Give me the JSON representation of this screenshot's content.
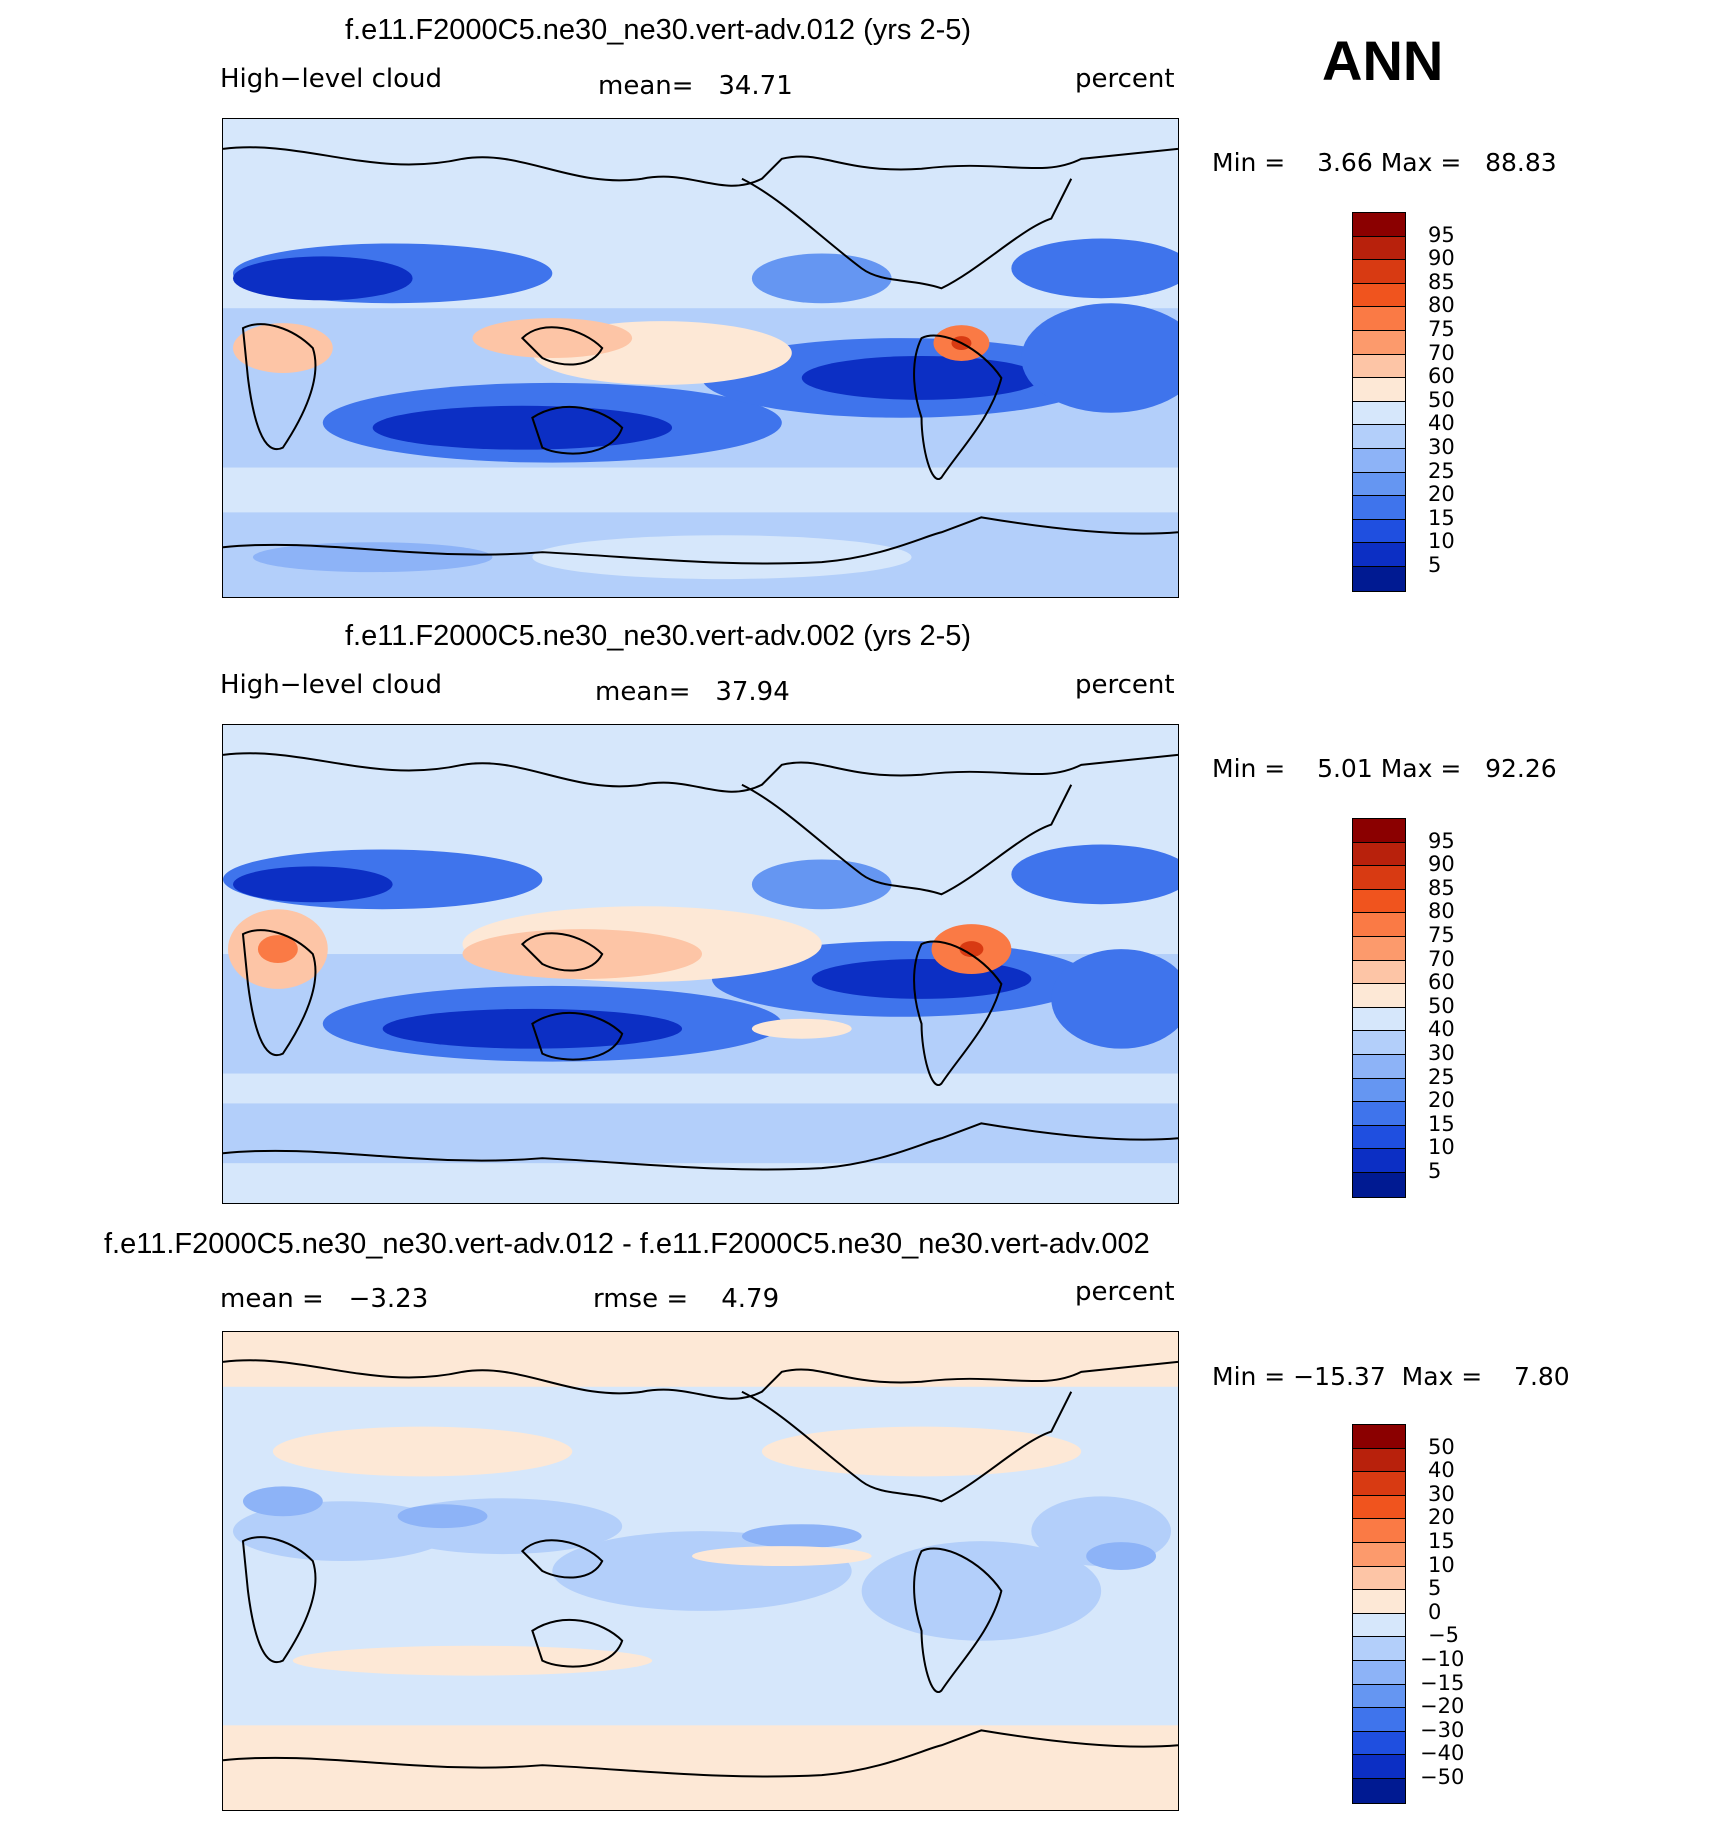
{
  "season": "ANN",
  "panels": [
    {
      "title": "f.e11.F2000C5.ne30_ne30.vert-adv.012 (yrs 2-5)",
      "left_label": "High−level cloud",
      "mean_label": "mean=",
      "mean_value": "34.71",
      "units": "percent",
      "min_label": "Min =",
      "min_value": "3.66",
      "max_label": "Max =",
      "max_value": "88.83",
      "colorbar_labels": [
        "95",
        "90",
        "85",
        "80",
        "75",
        "70",
        "60",
        "50",
        "40",
        "30",
        "25",
        "20",
        "15",
        "10",
        "5"
      ]
    },
    {
      "title": "f.e11.F2000C5.ne30_ne30.vert-adv.002 (yrs 2-5)",
      "left_label": "High−level cloud",
      "mean_label": "mean=",
      "mean_value": "37.94",
      "units": "percent",
      "min_label": "Min =",
      "min_value": "5.01",
      "max_label": "Max =",
      "max_value": "92.26",
      "colorbar_labels": [
        "95",
        "90",
        "85",
        "80",
        "75",
        "70",
        "60",
        "50",
        "40",
        "30",
        "25",
        "20",
        "15",
        "10",
        "5"
      ]
    },
    {
      "title": "f.e11.F2000C5.ne30_ne30.vert-adv.012 - f.e11.F2000C5.ne30_ne30.vert-adv.002",
      "mean_label": "mean =",
      "mean_value": "−3.23",
      "rmse_label": "rmse =",
      "rmse_value": "4.79",
      "units": "percent",
      "min_label": "Min =",
      "min_value": "−15.37",
      "max_label": "Max =",
      "max_value": "7.80",
      "colorbar_labels": [
        "50",
        "40",
        "30",
        "20",
        "15",
        "10",
        "5",
        "0",
        "−5",
        "−10",
        "−15",
        "−20",
        "−30",
        "−40",
        "−50"
      ]
    }
  ],
  "colors": {
    "scale": [
      "#8b0000",
      "#b8210c",
      "#d83a12",
      "#f0541e",
      "#fa7a45",
      "#fc9a6c",
      "#fdc5a6",
      "#fde8d6",
      "#d6e7fb",
      "#b3cffa",
      "#8db3f7",
      "#6596f2",
      "#3f74ec",
      "#1f4fe0",
      "#0c2fc4",
      "#001a92"
    ],
    "land_outline": "#000000"
  }
}
